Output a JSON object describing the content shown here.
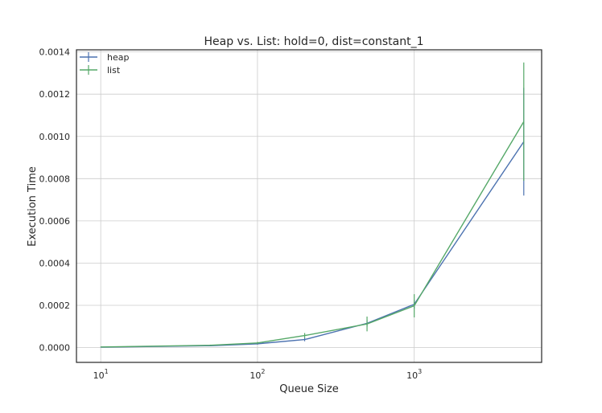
{
  "chart_data": {
    "type": "line",
    "title": "Heap vs. List: hold=0, dist=constant_1",
    "xlabel": "Queue Size",
    "ylabel": "Execution Time",
    "xscale": "log",
    "xlim": [
      7,
      6500
    ],
    "ylim": [
      -7e-05,
      0.00141
    ],
    "grid": true,
    "legend_position": "top-left",
    "x_ticks": [
      {
        "value": 10,
        "base": "10",
        "exp": "1"
      },
      {
        "value": 100,
        "base": "10",
        "exp": "2"
      },
      {
        "value": 1000,
        "base": "10",
        "exp": "3"
      }
    ],
    "y_ticks": [
      "0.0000",
      "0.0002",
      "0.0004",
      "0.0006",
      "0.0008",
      "0.0010",
      "0.0012",
      "0.0014"
    ],
    "series": [
      {
        "name": "heap",
        "color": "#4c72b0",
        "x": [
          10,
          50,
          100,
          200,
          500,
          1000,
          5000
        ],
        "y": [
          2e-06,
          9e-06,
          1.8e-05,
          3.8e-05,
          0.000115,
          0.000205,
          0.000975
        ],
        "err": [
          1e-06,
          2e-06,
          4e-06,
          8e-06,
          1.5e-05,
          2e-05,
          0.000255
        ]
      },
      {
        "name": "list",
        "color": "#55a868",
        "x": [
          10,
          50,
          100,
          200,
          500,
          1000,
          5000
        ],
        "y": [
          3e-06,
          1.1e-05,
          2.2e-05,
          5.7e-05,
          0.000112,
          0.000198,
          0.00107
        ],
        "err": [
          1e-06,
          3e-06,
          5e-06,
          1.2e-05,
          3.5e-05,
          5.5e-05,
          0.00028
        ]
      }
    ]
  }
}
